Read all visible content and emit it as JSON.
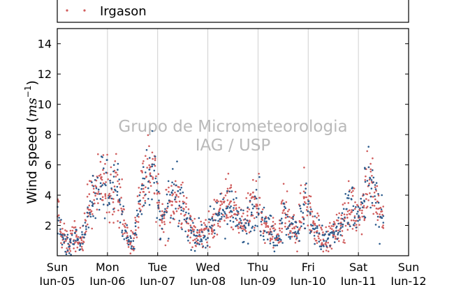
{
  "chart_data": {
    "type": "scatter",
    "xlabel": "",
    "ylabel": "Wind speed",
    "ylabel_unit_base": "ms",
    "ylabel_unit_exp": "−1",
    "ylim": [
      0,
      15
    ],
    "xlim_days": [
      0,
      7
    ],
    "x_ticks": [
      {
        "day": "Sun",
        "date": "Jun-05"
      },
      {
        "day": "Mon",
        "date": "Jun-06"
      },
      {
        "day": "Tue",
        "date": "Jun-07"
      },
      {
        "day": "Wed",
        "date": "Jun-08"
      },
      {
        "day": "Thu",
        "date": "Jun-09"
      },
      {
        "day": "Fri",
        "date": "Jun-10"
      },
      {
        "day": "Sat",
        "date": "Jun-11"
      },
      {
        "day": "Sun",
        "date": "Jun-12"
      }
    ],
    "y_ticks": [
      2,
      4,
      6,
      8,
      10,
      12,
      14
    ],
    "grid": "vertical",
    "legend_position": "top (above plot)",
    "watermark": [
      "Grupo de Micrometeorologia",
      "IAG / USP"
    ],
    "series": [
      {
        "name": "Irgason",
        "color": "#d05c5c",
        "marker": "dot",
        "hourly_mean": [
          2.8,
          1.8,
          1.3,
          1.1,
          0.9,
          0.9,
          1.0,
          1.2,
          1.4,
          1.0,
          0.9,
          1.1,
          1.6,
          2.3,
          3.0,
          3.4,
          3.7,
          3.9,
          4.1,
          4.3,
          4.6,
          4.8,
          4.9,
          4.8,
          4.6,
          4.4,
          4.7,
          4.9,
          4.5,
          4.0,
          3.3,
          2.5,
          1.8,
          1.3,
          0.9,
          0.8,
          1.0,
          1.8,
          3.0,
          4.0,
          4.8,
          5.2,
          5.5,
          5.8,
          6.0,
          5.7,
          5.0,
          4.2,
          3.2,
          2.6,
          2.3,
          2.4,
          3.0,
          3.5,
          3.8,
          3.9,
          3.8,
          3.7,
          3.5,
          3.3,
          3.0,
          2.7,
          2.4,
          2.1,
          1.8,
          1.5,
          1.4,
          1.3,
          1.3,
          1.4,
          1.5,
          1.6,
          1.7,
          1.9,
          2.1,
          2.3,
          2.6,
          2.9,
          3.1,
          3.2,
          3.3,
          3.4,
          3.2,
          3.0,
          2.8,
          2.5,
          2.3,
          2.2,
          2.1,
          2.0,
          2.2,
          2.6,
          3.0,
          3.6,
          3.8,
          3.7,
          3.3,
          2.8,
          2.2,
          2.0,
          1.8,
          1.9,
          1.8,
          1.5,
          1.3,
          1.5,
          2.0,
          2.6,
          3.0,
          2.8,
          2.4,
          2.1,
          1.8,
          1.6,
          1.5,
          2.1,
          2.8,
          3.2,
          3.6,
          3.3,
          2.8,
          2.4,
          2.1,
          1.9,
          2.0,
          1.5,
          1.2,
          1.0,
          1.1,
          1.2,
          1.3,
          1.4,
          1.5,
          1.6,
          1.8,
          2.0,
          2.2,
          2.5,
          2.8,
          3.1,
          3.3,
          3.2,
          3.0,
          2.8,
          2.6,
          3.0,
          3.8,
          4.5,
          5.2,
          5.3,
          4.6,
          3.8,
          3.3,
          3.0,
          2.8,
          2.7
        ]
      },
      {
        "name": "",
        "color": "#2a5a8c",
        "marker": "dot",
        "hourly_mean": [
          2.6,
          1.6,
          1.2,
          1.0,
          0.8,
          0.8,
          0.9,
          1.1,
          1.3,
          0.9,
          0.8,
          1.0,
          1.5,
          2.2,
          2.9,
          3.3,
          3.6,
          3.8,
          4.0,
          4.2,
          4.5,
          4.7,
          4.8,
          4.7,
          4.5,
          4.3,
          4.6,
          4.8,
          4.4,
          3.9,
          3.2,
          2.4,
          1.7,
          1.2,
          0.8,
          0.7,
          0.9,
          1.7,
          2.9,
          3.9,
          4.7,
          5.1,
          5.4,
          5.7,
          5.9,
          5.6,
          4.9,
          4.1,
          3.1,
          2.5,
          2.2,
          2.3,
          2.9,
          3.4,
          3.7,
          3.8,
          3.7,
          3.6,
          3.4,
          3.2,
          2.9,
          2.6,
          2.3,
          2.0,
          1.7,
          1.4,
          1.3,
          1.2,
          1.2,
          1.3,
          1.4,
          1.5,
          1.6,
          1.8,
          2.0,
          2.2,
          2.5,
          2.8,
          3.0,
          3.1,
          3.2,
          3.3,
          3.1,
          2.9,
          2.7,
          2.4,
          2.2,
          2.1,
          2.0,
          1.9,
          2.1,
          2.5,
          2.9,
          3.5,
          3.7,
          3.6,
          3.2,
          2.7,
          2.1,
          1.9,
          1.7,
          1.8,
          1.7,
          1.4,
          1.2,
          1.4,
          1.9,
          2.5,
          2.9,
          2.7,
          2.3,
          2.0,
          1.7,
          1.5,
          1.4,
          2.0,
          2.7,
          3.1,
          3.5,
          3.2,
          2.7,
          2.3,
          2.0,
          1.8,
          1.9,
          1.4,
          1.1,
          0.9,
          1.0,
          1.1,
          1.2,
          1.3,
          1.4,
          1.5,
          1.7,
          1.9,
          2.1,
          2.4,
          2.7,
          3.0,
          3.2,
          3.1,
          2.9,
          2.7,
          2.5,
          2.9,
          3.7,
          4.4,
          5.1,
          5.2,
          4.5,
          3.7,
          3.2,
          2.9,
          2.7,
          2.6
        ]
      }
    ]
  },
  "legend": {
    "label": "Irgason"
  },
  "ylabel": {
    "text": "Wind speed (",
    "math": "ms",
    "sup": "−1",
    "close": ")"
  }
}
